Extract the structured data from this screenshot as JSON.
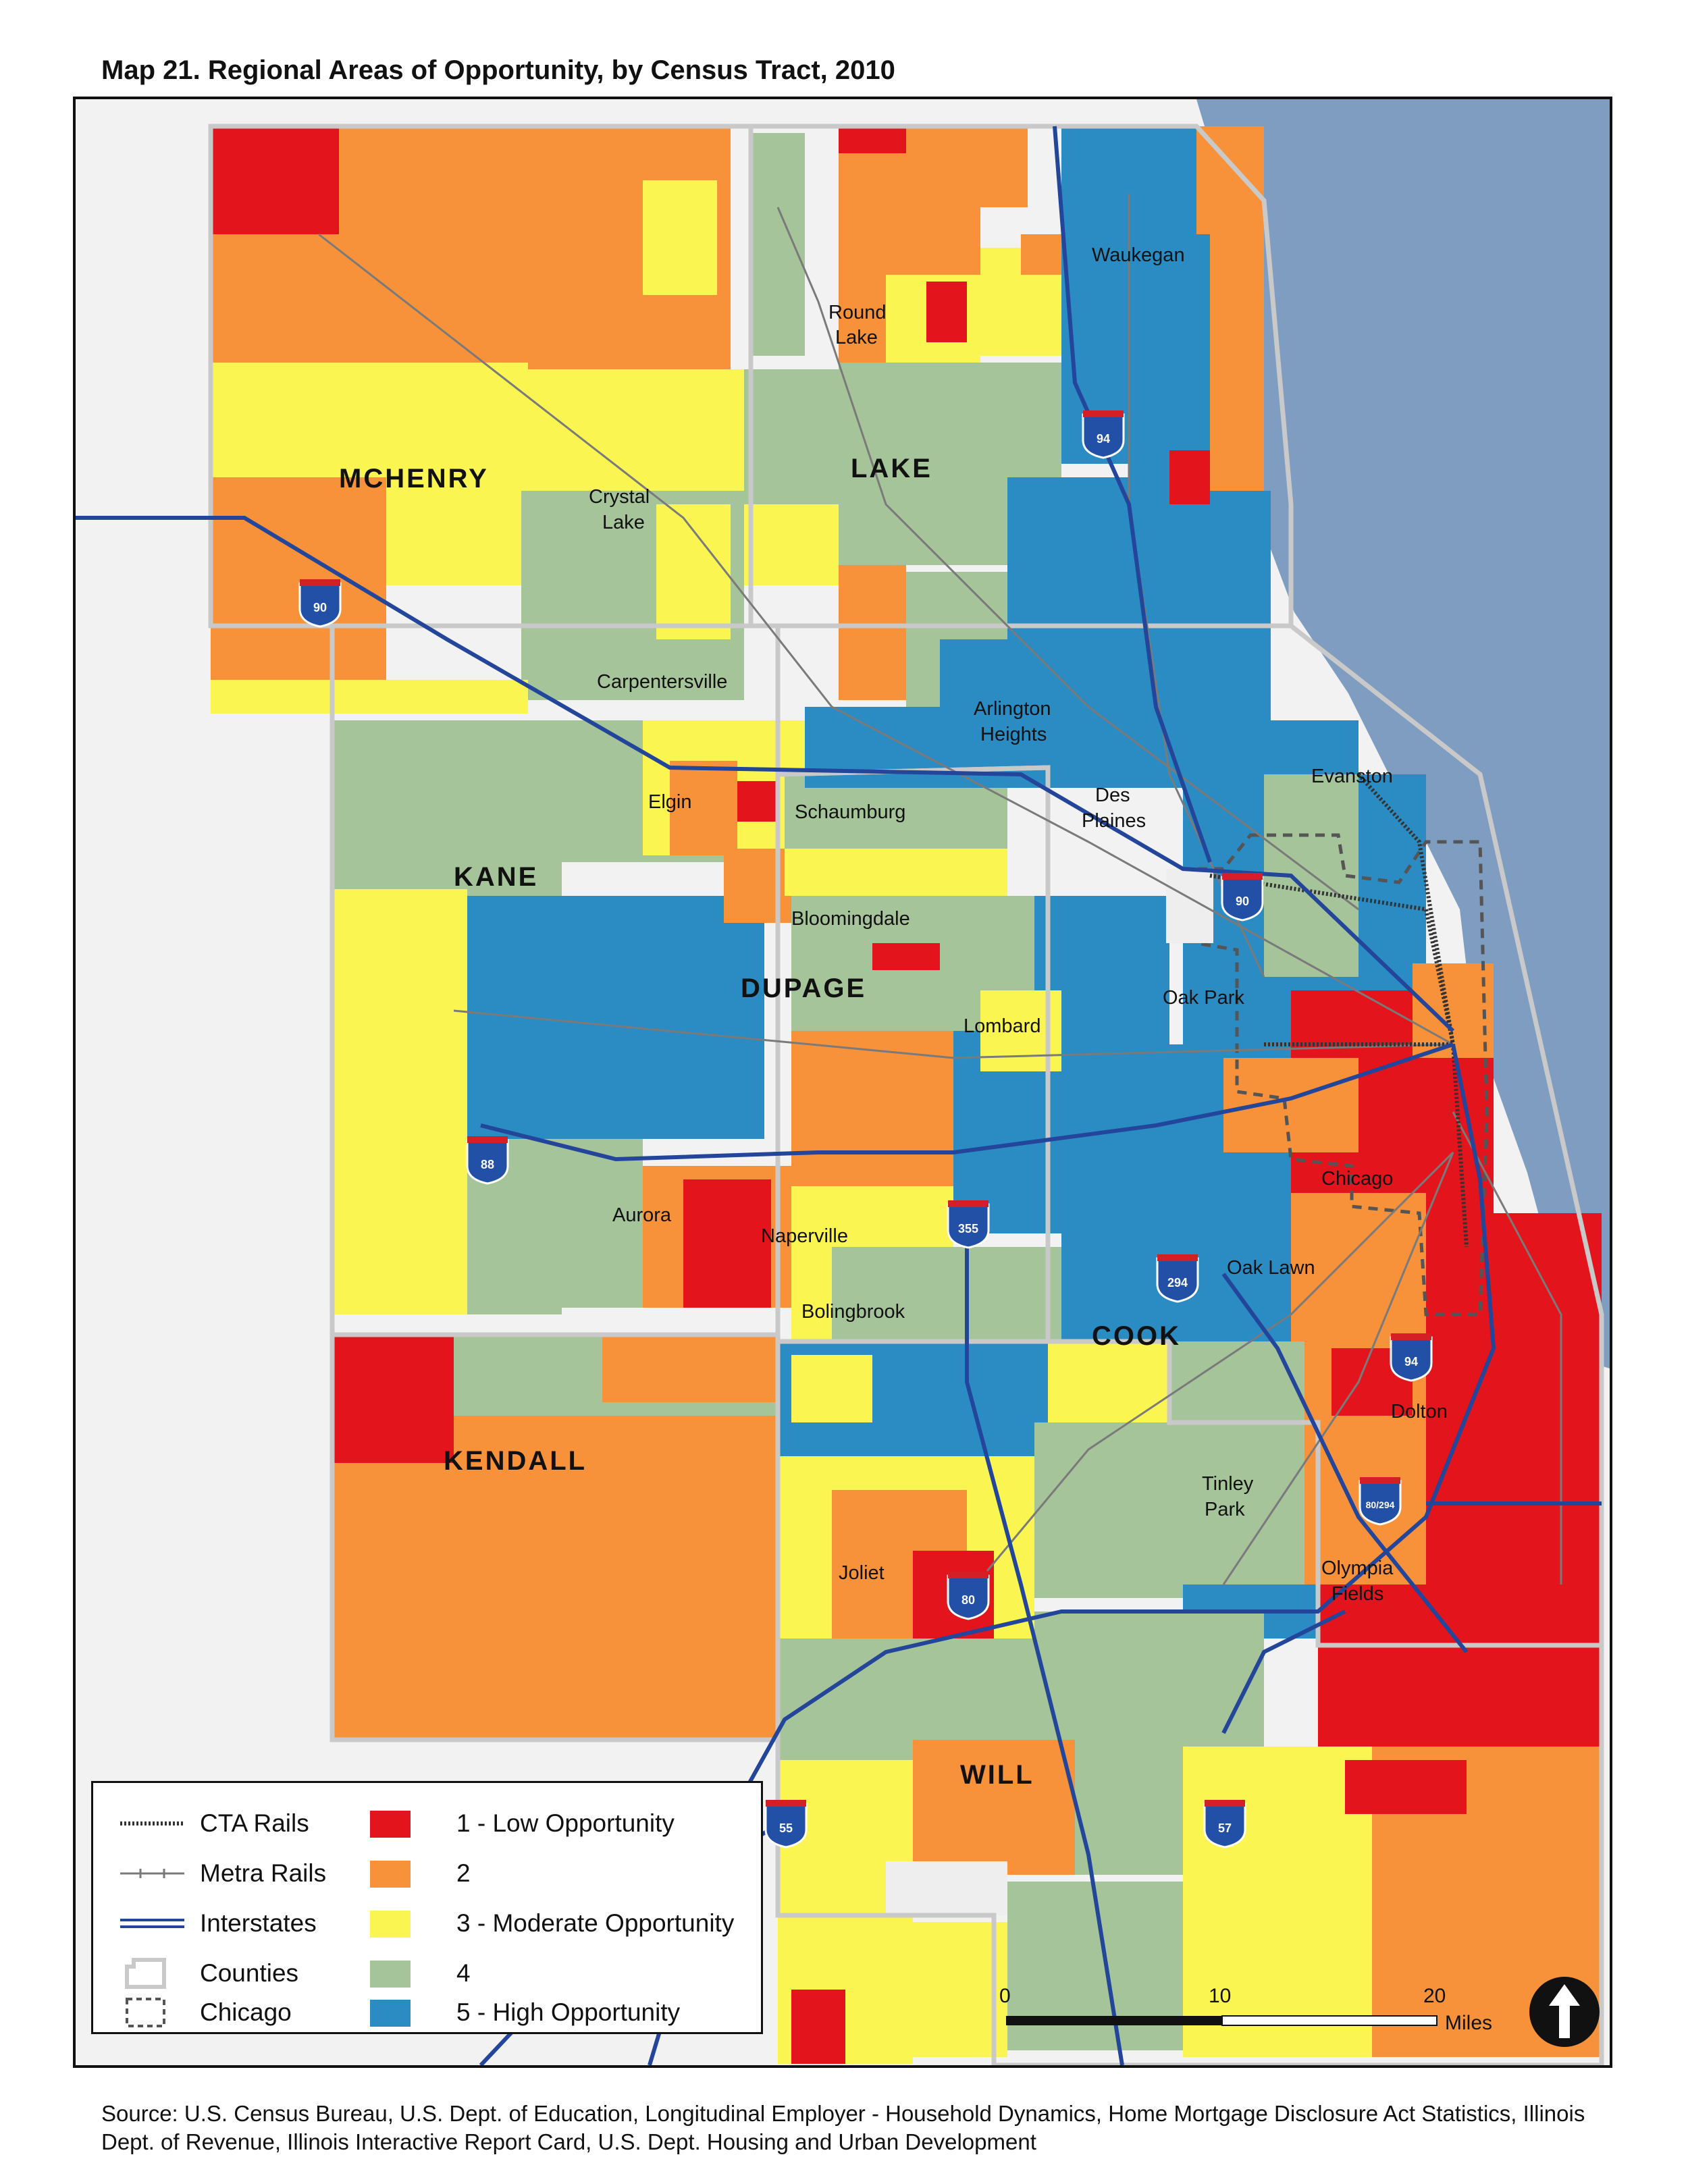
{
  "title": "Map 21. Regional Areas of Opportunity, by Census Tract, 2010",
  "source": "Source: U.S. Census Bureau, U.S. Dept. of Education, Longitudinal Employer - Household Dynamics, Home Mortgage Disclosure Act Statistics, Illinois Dept. of Revenue, Illinois Interactive Report Card, U.S. Dept. Housing and Urban Development",
  "colors": {
    "low_1": "#e3141c",
    "level_2": "#f7923a",
    "moderate_3": "#fbf552",
    "level_4": "#a6c49a",
    "high_5": "#2b8cc4",
    "lake": "#7f9dc1",
    "land_outside": "#f2f2f2"
  },
  "counties": {
    "mchenry": "MCHENRY",
    "lake": "LAKE",
    "kane": "KANE",
    "dupage": "DUPAGE",
    "cook": "COOK",
    "kendall": "KENDALL",
    "will": "WILL"
  },
  "places": {
    "waukegan": "Waukegan",
    "round_lake_1": "Round",
    "round_lake_2": "Lake",
    "crystal_lake_1": "Crystal",
    "crystal_lake_2": "Lake",
    "carpentersville": "Carpentersville",
    "arlington_1": "Arlington",
    "arlington_2": "Heights",
    "evanston": "Evanston",
    "elgin": "Elgin",
    "schaumburg": "Schaumburg",
    "des_plaines_1": "Des",
    "des_plaines_2": "Plaines",
    "bloomingdale": "Bloomingdale",
    "oak_park": "Oak Park",
    "lombard": "Lombard",
    "chicago": "Chicago",
    "aurora": "Aurora",
    "naperville": "Naperville",
    "oak_lawn": "Oak Lawn",
    "bolingbrook": "Bolingbrook",
    "dolton": "Dolton",
    "tinley_1": "Tinley",
    "tinley_2": "Park",
    "joliet": "Joliet",
    "olympia_1": "Olympia",
    "olympia_2": "Fields"
  },
  "interstates": {
    "i94_north": "94",
    "i90_west": "90",
    "i90_city": "90",
    "i88": "88",
    "i355": "355",
    "i294": "294",
    "i94_south": "94",
    "i80_294": "80/294",
    "i80": "80",
    "i55": "55",
    "i57": "57"
  },
  "legend": {
    "cta": "CTA Rails",
    "metra": "Metra Rails",
    "interstates": "Interstates",
    "counties": "Counties",
    "chicago": "Chicago",
    "level1": "1 - Low Opportunity",
    "level2": "2",
    "level3": "3 - Moderate Opportunity",
    "level4": "4",
    "level5": "5 - High Opportunity"
  },
  "scale": {
    "t0": "0",
    "t10": "10",
    "t20": "20",
    "unit": "Miles"
  }
}
